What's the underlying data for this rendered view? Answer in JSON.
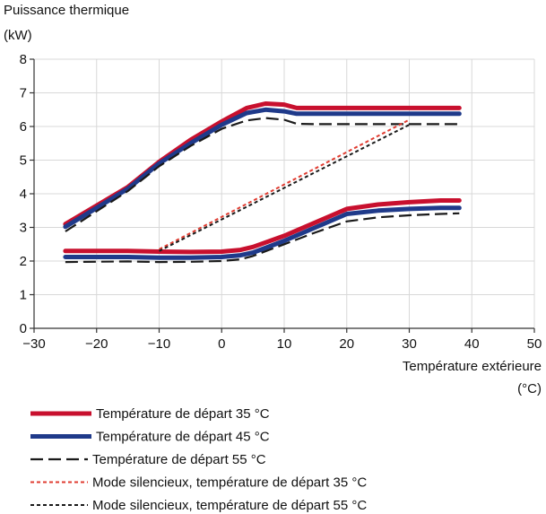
{
  "chart_data": {
    "type": "line",
    "ylabel": "Puissance thermique",
    "yunit": "(kW)",
    "xlabel": "Température extérieure",
    "xunit": "(°C)",
    "xlim": [
      -30,
      50
    ],
    "ylim": [
      0,
      8
    ],
    "xticks": [
      -30,
      -20,
      -10,
      0,
      10,
      20,
      30,
      40,
      50
    ],
    "yticks": [
      0,
      1,
      2,
      3,
      4,
      5,
      6,
      7,
      8
    ],
    "grid": true,
    "legend_position": "bottom",
    "series": [
      {
        "name": "Température de départ 35 °C",
        "color": "#c8102e",
        "style": "solid",
        "curves": [
          [
            [
              -25,
              3.1
            ],
            [
              -20,
              3.65
            ],
            [
              -15,
              4.2
            ],
            [
              -10,
              4.95
            ],
            [
              -5,
              5.6
            ],
            [
              0,
              6.15
            ],
            [
              4,
              6.55
            ],
            [
              7,
              6.68
            ],
            [
              10,
              6.65
            ],
            [
              12,
              6.55
            ],
            [
              15,
              6.55
            ],
            [
              20,
              6.55
            ],
            [
              25,
              6.55
            ],
            [
              30,
              6.55
            ],
            [
              35,
              6.55
            ],
            [
              38,
              6.55
            ]
          ],
          [
            [
              -25,
              2.3
            ],
            [
              -15,
              2.3
            ],
            [
              -10,
              2.28
            ],
            [
              -5,
              2.27
            ],
            [
              0,
              2.28
            ],
            [
              3,
              2.33
            ],
            [
              5,
              2.42
            ],
            [
              10,
              2.75
            ],
            [
              15,
              3.15
            ],
            [
              20,
              3.55
            ],
            [
              25,
              3.68
            ],
            [
              30,
              3.75
            ],
            [
              35,
              3.8
            ],
            [
              38,
              3.8
            ]
          ]
        ]
      },
      {
        "name": "Température de départ 45 °C",
        "color": "#1f3a8a",
        "style": "solid",
        "curves": [
          [
            [
              -25,
              3.02
            ],
            [
              -20,
              3.58
            ],
            [
              -15,
              4.15
            ],
            [
              -10,
              4.9
            ],
            [
              -5,
              5.5
            ],
            [
              0,
              6.05
            ],
            [
              4,
              6.4
            ],
            [
              7,
              6.5
            ],
            [
              10,
              6.45
            ],
            [
              12,
              6.38
            ],
            [
              15,
              6.38
            ],
            [
              20,
              6.38
            ],
            [
              25,
              6.38
            ],
            [
              30,
              6.38
            ],
            [
              35,
              6.38
            ],
            [
              38,
              6.38
            ]
          ],
          [
            [
              -25,
              2.12
            ],
            [
              -15,
              2.12
            ],
            [
              -10,
              2.1
            ],
            [
              -5,
              2.1
            ],
            [
              0,
              2.12
            ],
            [
              3,
              2.17
            ],
            [
              5,
              2.25
            ],
            [
              10,
              2.6
            ],
            [
              15,
              3.0
            ],
            [
              20,
              3.4
            ],
            [
              25,
              3.5
            ],
            [
              30,
              3.55
            ],
            [
              35,
              3.58
            ],
            [
              38,
              3.58
            ]
          ]
        ]
      },
      {
        "name": "Température de départ 55 °C",
        "color": "#1a1a1a",
        "style": "dashed",
        "curves": [
          [
            [
              -25,
              2.88
            ],
            [
              -20,
              3.48
            ],
            [
              -15,
              4.08
            ],
            [
              -10,
              4.82
            ],
            [
              -5,
              5.42
            ],
            [
              0,
              5.93
            ],
            [
              4,
              6.18
            ],
            [
              7,
              6.25
            ],
            [
              10,
              6.2
            ],
            [
              12,
              6.08
            ],
            [
              15,
              6.07
            ],
            [
              20,
              6.07
            ],
            [
              25,
              6.07
            ],
            [
              30,
              6.07
            ],
            [
              35,
              6.07
            ],
            [
              38,
              6.07
            ]
          ],
          [
            [
              -25,
              1.97
            ],
            [
              -15,
              1.99
            ],
            [
              -10,
              1.97
            ],
            [
              -5,
              1.98
            ],
            [
              0,
              2.0
            ],
            [
              3,
              2.05
            ],
            [
              5,
              2.15
            ],
            [
              10,
              2.5
            ],
            [
              15,
              2.85
            ],
            [
              20,
              3.18
            ],
            [
              25,
              3.3
            ],
            [
              30,
              3.36
            ],
            [
              35,
              3.4
            ],
            [
              38,
              3.42
            ]
          ]
        ]
      },
      {
        "name": "Mode silencieux, température de départ 35 °C",
        "color": "#e03c31",
        "style": "dotted",
        "curves": [
          [
            [
              -10,
              2.35
            ],
            [
              30,
              6.2
            ]
          ]
        ]
      },
      {
        "name": "Mode silencieux, température de départ 55 °C",
        "color": "#1a1a1a",
        "style": "dotted",
        "curves": [
          [
            [
              -10,
              2.3
            ],
            [
              30,
              6.05
            ]
          ]
        ]
      }
    ]
  }
}
